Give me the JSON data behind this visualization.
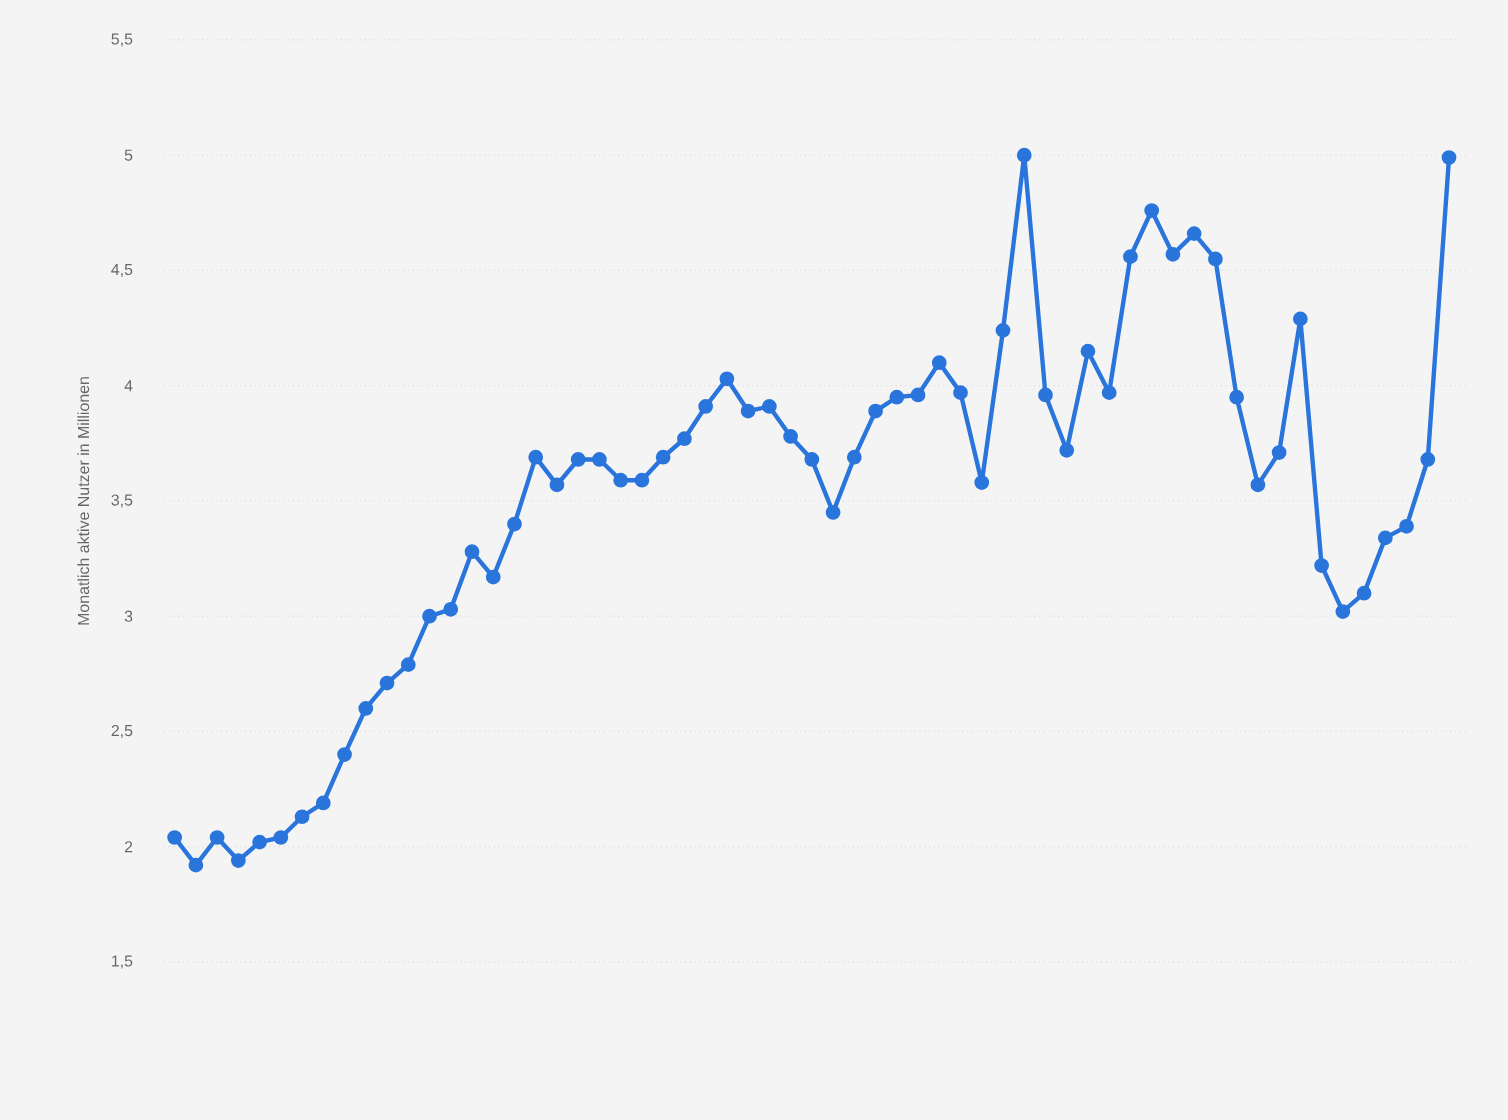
{
  "chart_data": {
    "type": "line",
    "ylabel": "Monatlich aktive Nutzer in Millionen",
    "categories": [
      null,
      null,
      null,
      null,
      null,
      null,
      null,
      null,
      null,
      null,
      null,
      null,
      null,
      null,
      null,
      null,
      null,
      null,
      null,
      null,
      null,
      null,
      null,
      null,
      null,
      null,
      null,
      null,
      null,
      null,
      null,
      null,
      null,
      null,
      null,
      null,
      null,
      null,
      null,
      null,
      null,
      null,
      null,
      null,
      null,
      null,
      null,
      null,
      null,
      null,
      null,
      null,
      null,
      null,
      null,
      null,
      null,
      null,
      null,
      null,
      null
    ],
    "series": [
      {
        "color": "#2a75dc",
        "values": [
          2.04,
          1.92,
          2.04,
          1.94,
          2.02,
          2.04,
          2.13,
          2.19,
          2.4,
          2.6,
          2.71,
          2.79,
          3.0,
          3.03,
          3.28,
          3.17,
          3.4,
          3.69,
          3.57,
          3.68,
          3.68,
          3.59,
          3.59,
          3.69,
          3.77,
          3.91,
          4.03,
          3.89,
          3.91,
          3.78,
          3.68,
          3.45,
          3.69,
          3.89,
          3.95,
          3.96,
          4.1,
          3.97,
          3.58,
          4.24,
          5.0,
          3.96,
          3.72,
          4.15,
          3.97,
          4.56,
          4.76,
          4.57,
          4.66,
          4.55,
          3.95,
          3.57,
          3.71,
          4.29,
          3.22,
          3.02,
          3.1,
          3.34,
          3.39,
          3.68,
          4.99
        ]
      }
    ],
    "ylim": [
      1.5,
      5.5
    ],
    "yticks": [
      {
        "value": 1.5,
        "label": "1,5"
      },
      {
        "value": 2,
        "label": "2"
      },
      {
        "value": 2.5,
        "label": "2,5"
      },
      {
        "value": 3,
        "label": "3"
      },
      {
        "value": 3.5,
        "label": "3,5"
      },
      {
        "value": 4,
        "label": "4"
      },
      {
        "value": 4.5,
        "label": "4,5"
      },
      {
        "value": 5,
        "label": "5"
      },
      {
        "value": 5.5,
        "label": "5,5"
      }
    ],
    "grid": "y",
    "marker": "circle",
    "line_style": "solid",
    "tick_labels": "y"
  }
}
